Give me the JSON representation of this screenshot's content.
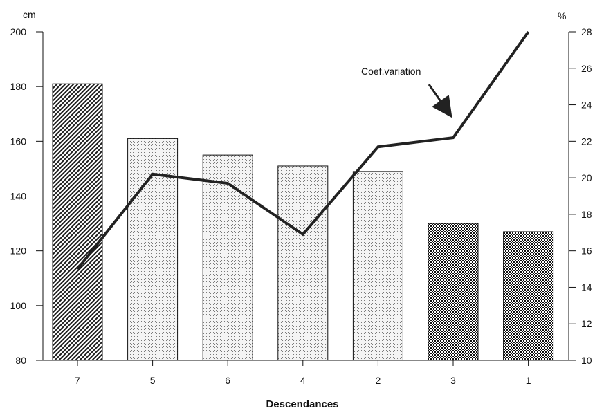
{
  "chart_data": {
    "type": "bar",
    "categories": [
      "7",
      "5",
      "6",
      "4",
      "2",
      "3",
      "1"
    ],
    "xlabel": "Descendances",
    "y_left": {
      "unit": "cm",
      "range": [
        80,
        200
      ],
      "ticks": [
        "80",
        "100",
        "120",
        "140",
        "160",
        "180",
        "200"
      ]
    },
    "y_right": {
      "unit": "%",
      "range": [
        10,
        28
      ],
      "ticks": [
        "10",
        "12",
        "14",
        "16",
        "18",
        "20",
        "22",
        "24",
        "26",
        "28"
      ]
    },
    "bars": {
      "values": [
        181,
        161,
        155,
        151,
        149,
        130,
        127
      ],
      "patterns": [
        "hatch",
        "dots",
        "dots",
        "dots",
        "dots",
        "checker",
        "checker"
      ]
    },
    "line": {
      "axis": "right",
      "values": [
        15.0,
        20.2,
        19.7,
        16.9,
        21.7,
        22.2,
        28.0
      ],
      "color": "#222222"
    },
    "annotation": {
      "text": "Coef.variation",
      "points_to_category": "3"
    },
    "grid": false,
    "legend": "none"
  }
}
